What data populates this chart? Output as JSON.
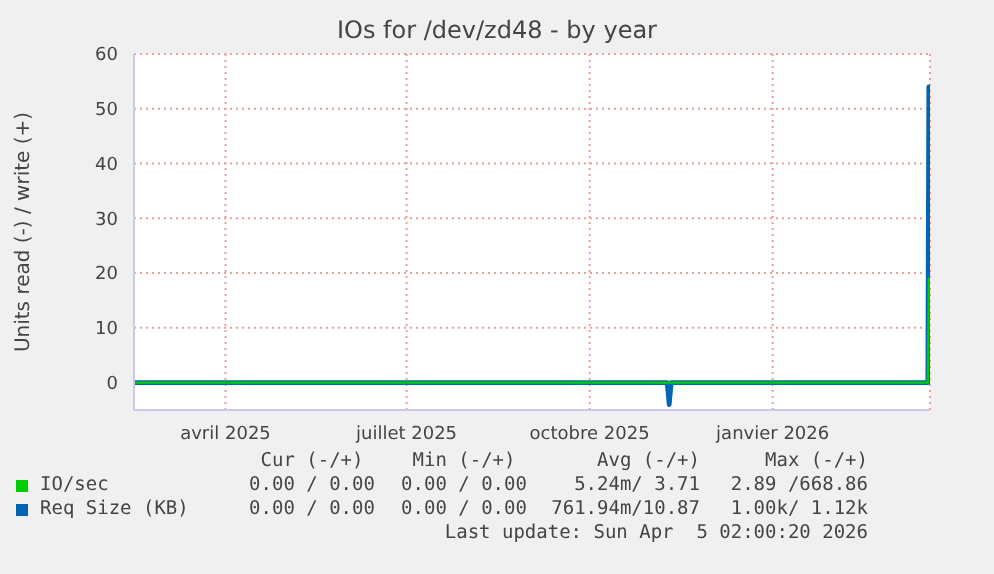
{
  "chart_data": {
    "type": "line",
    "title": "IOs for /dev/zd48 - by year",
    "ylabel": "Units read (-) / write (+)",
    "xlim": [
      "2025-03-01",
      "2026-04-05T02:00"
    ],
    "xticks": [
      {
        "value": "2025-04-16",
        "label": "avril 2025"
      },
      {
        "value": "2025-07-16",
        "label": "juillet 2025"
      },
      {
        "value": "2025-10-16",
        "label": "octobre 2025"
      },
      {
        "value": "2026-01-16",
        "label": "janvier 2026"
      }
    ],
    "ylim": [
      -5,
      60
    ],
    "yticks": [
      0,
      10,
      20,
      30,
      40,
      50,
      60
    ],
    "grid": true,
    "legend": "bottom",
    "marker": "none",
    "line_style": "solid",
    "series": [
      {
        "name": "Req Size (KB)",
        "color": "#0066b3",
        "x": [
          "2025-03-01",
          "2025-11-24",
          "2025-11-25",
          "2025-11-26",
          "2026-04-04",
          "2026-04-04T12:00",
          "2026-04-05T02:00"
        ],
        "values": [
          0,
          0,
          -4,
          0,
          0,
          54,
          54
        ]
      },
      {
        "name": "IO/sec",
        "color": "#00cc00",
        "x": [
          "2025-03-01",
          "2026-04-04",
          "2026-04-04T12:00",
          "2026-04-05T02:00"
        ],
        "values": [
          0,
          0,
          19,
          19
        ]
      }
    ],
    "annotations": [
      "Cur (-/+)",
      "Min (-/+)",
      "Avg (-/+)",
      "Max (-/+)",
      "0.00 / 0.00",
      "0.00 / 0.00",
      "5.24m/ 3.71",
      "2.89 /668.86",
      "0.00 / 0.00",
      "0.00 / 0.00",
      "761.94m/10.87",
      "1.00k/ 1.12k",
      "Last update: Sun Apr  5 02:00:20 2026"
    ]
  }
}
